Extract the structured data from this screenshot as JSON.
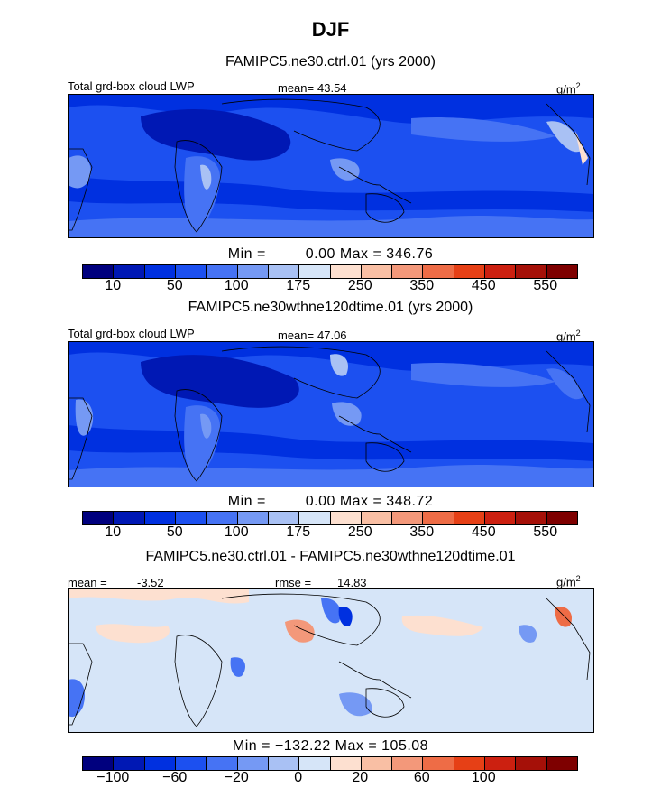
{
  "title": "DJF",
  "unit_label": "g/m",
  "unit_exp": "2",
  "colors_abs": [
    "#00007e",
    "#0018b4",
    "#0030e0",
    "#1c50f0",
    "#4673f4",
    "#7599f4",
    "#a9c1f4",
    "#d6e5f8",
    "#fde0d0",
    "#f9bfa4",
    "#f3987a",
    "#ee6c46",
    "#e64016",
    "#cc2010",
    "#a51008",
    "#7e0000"
  ],
  "colors_diff": [
    "#00007e",
    "#0018b4",
    "#0030e0",
    "#1c50f0",
    "#4673f4",
    "#7599f4",
    "#a9c1f4",
    "#d6e5f8",
    "#fde0d0",
    "#f9bfa4",
    "#f3987a",
    "#ee6c46",
    "#e64016",
    "#cc2010",
    "#a51008",
    "#7e0000"
  ],
  "panels": [
    {
      "title": "FAMIPC5.ne30.ctrl.01 (yrs 2000)",
      "variable": "Total grd-box cloud LWP",
      "mean_label": "mean=",
      "mean": "43.54",
      "min_label": "Min =",
      "min": "0.00",
      "max_label": "Max =",
      "max": "346.76",
      "ticks": [
        "10",
        "50",
        "100",
        "175",
        "250",
        "350",
        "450",
        "550"
      ]
    },
    {
      "title": "FAMIPC5.ne30wthne120dtime.01 (yrs 2000)",
      "variable": "Total grd-box cloud LWP",
      "mean_label": "mean=",
      "mean": "47.06",
      "min_label": "Min =",
      "min": "0.00",
      "max_label": "Max =",
      "max": "348.72",
      "ticks": [
        "10",
        "50",
        "100",
        "175",
        "250",
        "350",
        "450",
        "550"
      ]
    },
    {
      "title": "FAMIPC5.ne30.ctrl.01 - FAMIPC5.ne30wthne120dtime.01",
      "mean_label": "mean =",
      "mean": "-3.52",
      "rmse_label": "rmse =",
      "rmse": "14.83",
      "min_label": "Min =",
      "min": "−132.22",
      "max_label": "Max =",
      "max": "105.08",
      "ticks": [
        "−100",
        "−60",
        "−20",
        "0",
        "20",
        "60",
        "100"
      ]
    }
  ],
  "chart_data": [
    {
      "type": "heatmap",
      "title": "FAMIPC5.ne30.ctrl.01 (yrs 2000)",
      "variable": "Total grd-box cloud LWP",
      "unit": "g/m2",
      "mean": 43.54,
      "min": 0.0,
      "max": 346.76,
      "colorbar_levels": [
        10,
        50,
        100,
        175,
        250,
        350,
        450,
        550
      ]
    },
    {
      "type": "heatmap",
      "title": "FAMIPC5.ne30wthne120dtime.01 (yrs 2000)",
      "variable": "Total grd-box cloud LWP",
      "unit": "g/m2",
      "mean": 47.06,
      "min": 0.0,
      "max": 348.72,
      "colorbar_levels": [
        10,
        50,
        100,
        175,
        250,
        350,
        450,
        550
      ]
    },
    {
      "type": "heatmap",
      "title": "FAMIPC5.ne30.ctrl.01 - FAMIPC5.ne30wthne120dtime.01",
      "unit": "g/m2",
      "mean": -3.52,
      "rmse": 14.83,
      "min": -132.22,
      "max": 105.08,
      "colorbar_levels": [
        -100,
        -60,
        -20,
        0,
        20,
        60,
        100
      ]
    }
  ]
}
